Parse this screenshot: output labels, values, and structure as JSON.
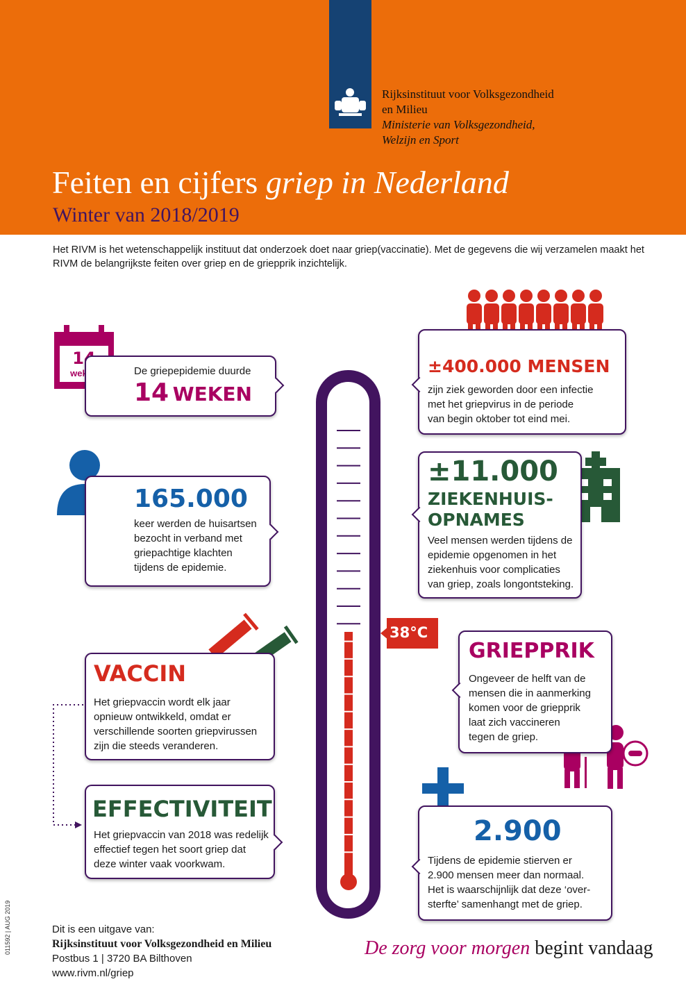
{
  "header": {
    "organization": [
      "Rijksinstituut voor Volksgezondheid",
      "en Milieu"
    ],
    "ministry": [
      "Ministerie van Volksgezondheid,",
      "Welzijn en Sport"
    ],
    "title": "Feiten en cijfers",
    "title_emphasis": "griep in Nederland",
    "subtitle": "Winter van 2018/2019"
  },
  "intro": "Het RIVM is het wetenschappelijk instituut dat onderzoek doet naar griep(vaccinatie). Met de gegevens die wij verzamelen maakt het RIVM de belangrijkste feiten over griep en de griepprik inzichtelijk.",
  "calendar": {
    "number": "14",
    "unit": "weken"
  },
  "duration": {
    "lead": "De griepepidemie duurde",
    "number": "14",
    "unit": "WEKEN"
  },
  "doctor_visits": {
    "number": "165.000",
    "lines": [
      "keer werden de huisartsen",
      "bezocht in verband met",
      "griepachtige klachten",
      "tijdens de epidemie."
    ]
  },
  "vaccine": {
    "heading": "VACCIN",
    "lines": [
      "Het griepvaccin wordt elk jaar",
      "opnieuw ontwikkeld, omdat er",
      "verschillende soorten griepvirussen",
      "zijn die steeds veranderen."
    ]
  },
  "effectiveness": {
    "heading": "EFFECTIVITEIT",
    "lines": [
      "Het griepvaccin van 2018 was redelijk",
      "effectief tegen het soort griep dat",
      "deze winter vaak voorkwam."
    ]
  },
  "sick": {
    "heading": "±400.000 MENSEN",
    "lines": [
      "zijn ziek geworden door een infectie",
      "met het griepvirus in de periode",
      "van begin oktober tot eind mei."
    ]
  },
  "hospital": {
    "number": "±11.000",
    "heading": [
      "ZIEKENHUIS-",
      "OPNAMES"
    ],
    "lines": [
      "Veel mensen werden tijdens de",
      "epidemie opgenomen in het",
      "ziekenhuis voor complicaties",
      "van griep, zoals longontsteking."
    ]
  },
  "flu_shot": {
    "heading": "GRIEPPRIK",
    "lines": [
      "Ongeveer de helft van de",
      "mensen die in aanmerking",
      "komen voor de griepprik",
      "laat zich vaccineren",
      "tegen de griep."
    ]
  },
  "deaths": {
    "number": "2.900",
    "lines": [
      "Tijdens de epidemie stierven er",
      "2.900 mensen meer dan normaal.",
      "Het is waarschijnlijk dat deze ‘over-",
      "sterfte’ samenhangt met de griep."
    ]
  },
  "thermometer": {
    "label": "38°C"
  },
  "footer": {
    "lines": [
      "Dit is een uitgave van:",
      "Rijksinstituut voor Volksgezondheid en Milieu",
      "Postbus 1 | 3720 BA  Bilthoven",
      "www.rivm.nl/griep"
    ],
    "tagline_emphasis": "De zorg voor morgen",
    "tagline": "begint vandaag",
    "code": "011592 | AUG 2019"
  }
}
